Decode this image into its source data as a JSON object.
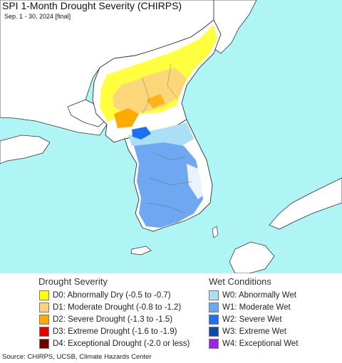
{
  "header": {
    "title": "SPI 1-Month Drought Severity (CHIRPS)",
    "subtitle": "Sep. 1 - 30, 2024 [final]"
  },
  "colors": {
    "ocean": "#aff5f5",
    "land": "#ffffff",
    "border": "#333333"
  },
  "legend": {
    "drought": {
      "heading": "Drought Severity",
      "items": [
        {
          "label": "D0: Abnormally Dry (-0.5 to -0.7)",
          "color": "#ffff00"
        },
        {
          "label": "D1: Moderate Drought (-0.8 to -1.2)",
          "color": "#fcd37f"
        },
        {
          "label": "D2: Severe Drought (-1.3 to -1.5)",
          "color": "#ffaa00"
        },
        {
          "label": "D3: Extreme Drought (-1.6 to -1.9)",
          "color": "#e60000"
        },
        {
          "label": "D4: Exceptional Drought (-2.0 or less)",
          "color": "#730000"
        }
      ]
    },
    "wet": {
      "heading": "Wet Conditions",
      "items": [
        {
          "label": "W0: Abnormally Wet",
          "color": "#aadff5"
        },
        {
          "label": "W1: Moderate Wet",
          "color": "#6fa8f0"
        },
        {
          "label": "W2: Severe Wet",
          "color": "#1a72f2"
        },
        {
          "label": "W3: Extreme Wet",
          "color": "#0d47b0"
        },
        {
          "label": "W4: Exceptional Wet",
          "color": "#a020f0"
        }
      ]
    }
  },
  "footer": {
    "source": "Source: CHIRPS, UCSB, Climate Hazards Center"
  }
}
